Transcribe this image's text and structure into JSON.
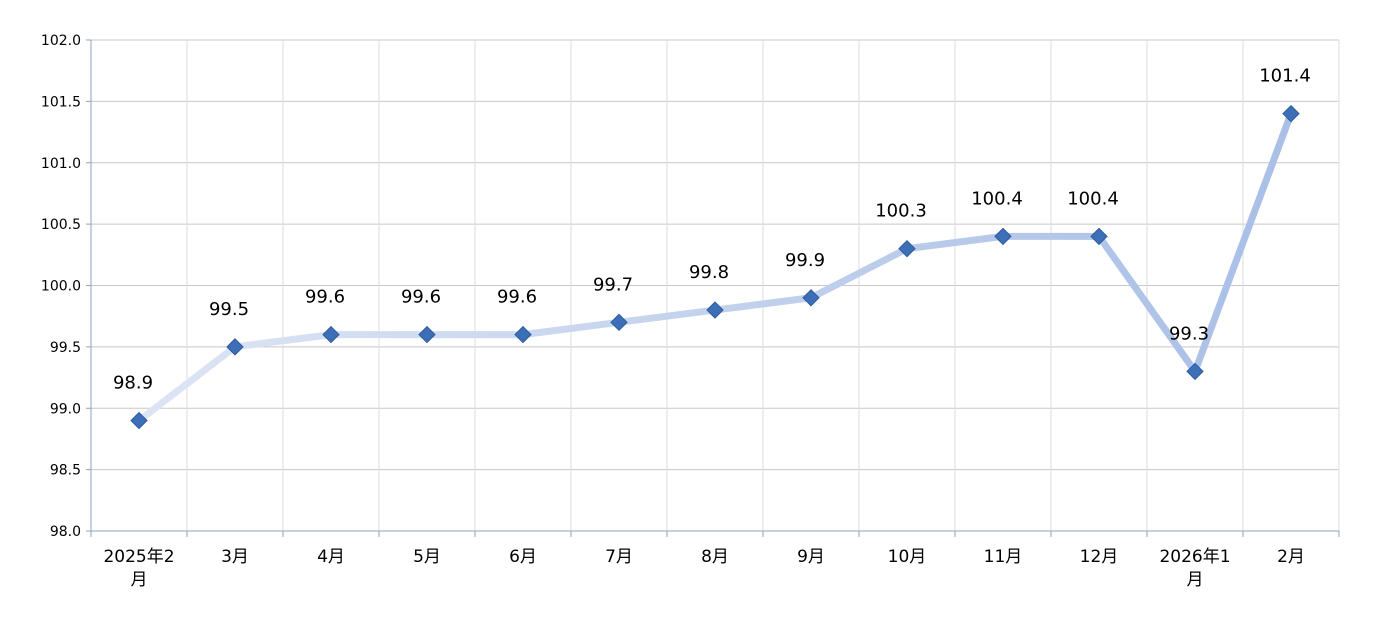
{
  "chart_data": {
    "type": "line",
    "categories": [
      "2025年2月",
      "3月",
      "4月",
      "5月",
      "6月",
      "7月",
      "8月",
      "9月",
      "10月",
      "11月",
      "12月",
      "2026年1月",
      "2月"
    ],
    "series": [
      {
        "values": [
          98.9,
          99.5,
          99.6,
          99.6,
          99.6,
          99.7,
          99.8,
          99.9,
          100.3,
          100.4,
          100.4,
          99.3,
          101.4
        ],
        "labels": [
          "98.9",
          "99.5",
          "99.6",
          "99.6",
          "99.6",
          "99.7",
          "99.8",
          "99.9",
          "100.3",
          "100.4",
          "100.4",
          "99.3",
          "101.4"
        ]
      }
    ],
    "ylim": [
      98.0,
      102.0
    ],
    "yticks": [
      "98.0",
      "98.5",
      "99.0",
      "99.5",
      "100.0",
      "100.5",
      "101.0",
      "101.5",
      "102.0"
    ],
    "grid": true,
    "legend": "none",
    "colors": {
      "line_start": "#dde5f4",
      "line_end": "#a9bfe6",
      "marker": "#3d6fb6",
      "marker_edge": "#2c5aa0",
      "grid": "#c8c8c8",
      "axis": "#8fa3b3"
    },
    "marker_icon": "diamond-marker"
  }
}
